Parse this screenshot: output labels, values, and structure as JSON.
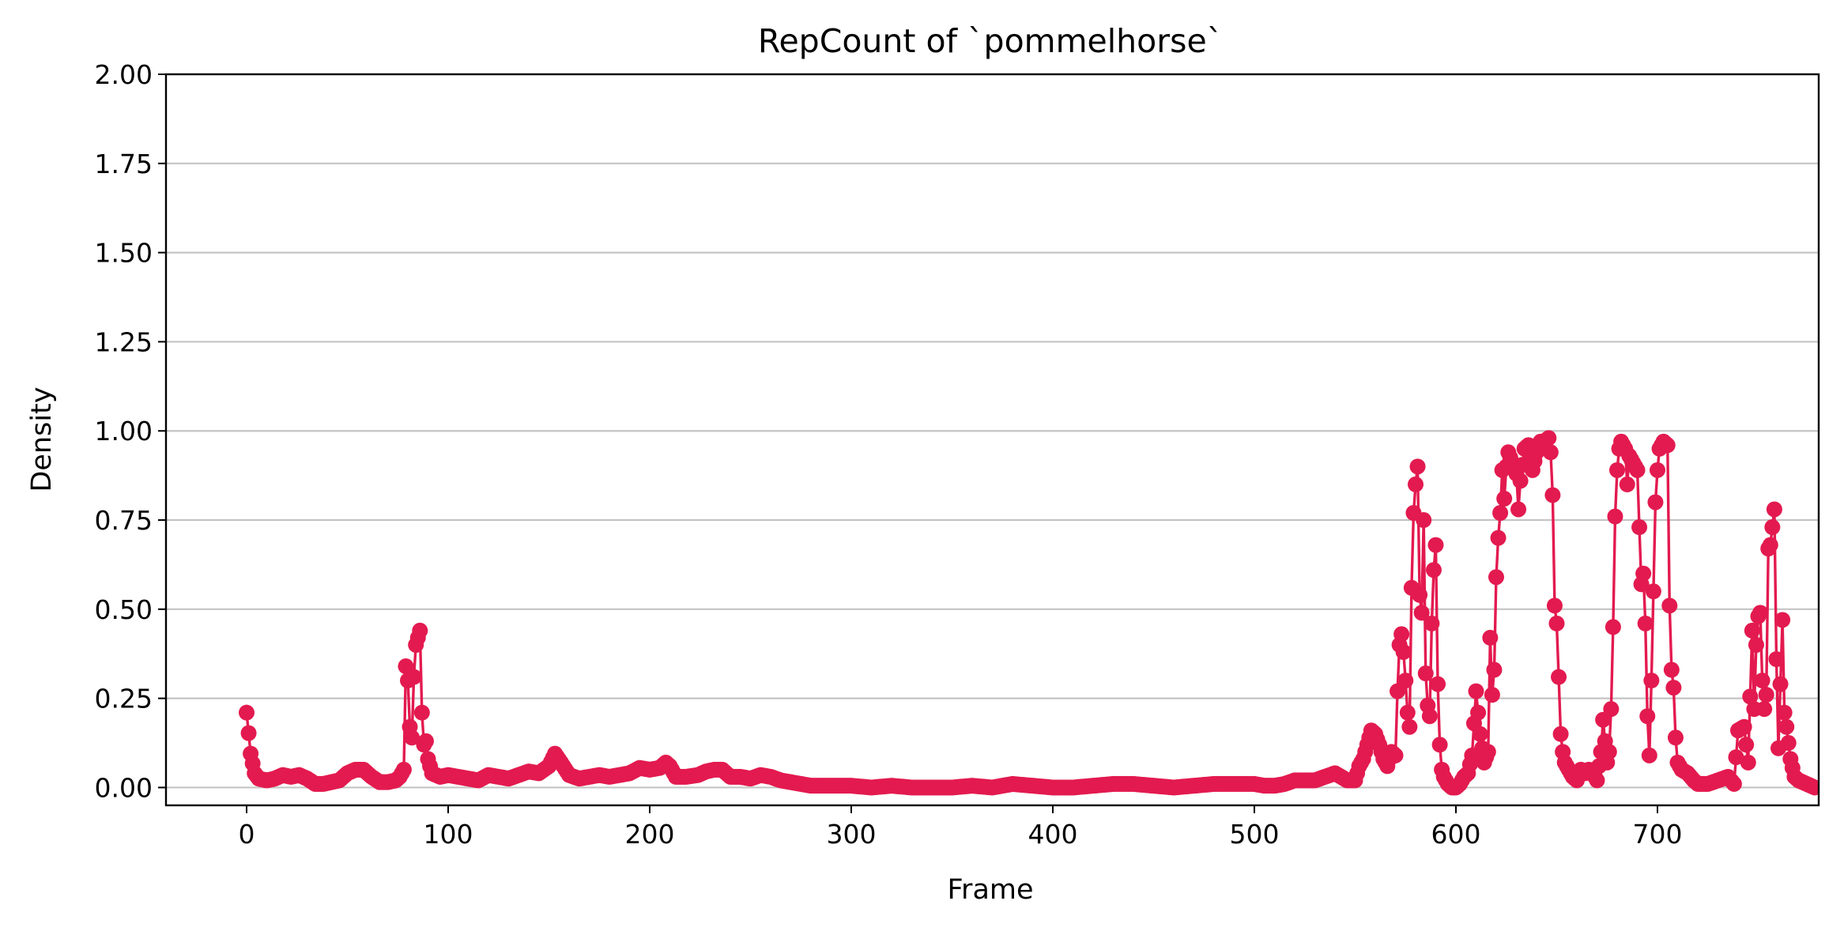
{
  "chart_data": {
    "type": "line",
    "title": "RepCount of `pommelhorse`",
    "xlabel": "Frame",
    "ylabel": "Density",
    "xlim": [
      -40,
      780
    ],
    "ylim": [
      -0.05,
      2.0
    ],
    "xticks": [
      0,
      100,
      200,
      300,
      400,
      500,
      600,
      700
    ],
    "xtick_labels": [
      "0",
      "100",
      "200",
      "300",
      "400",
      "500",
      "600",
      "700"
    ],
    "yticks": [
      0.0,
      0.25,
      0.5,
      0.75,
      1.0,
      1.25,
      1.5,
      1.75,
      2.0
    ],
    "ytick_labels": [
      "0.00",
      "0.25",
      "0.50",
      "0.75",
      "1.00",
      "1.25",
      "1.50",
      "1.75",
      "2.00"
    ],
    "grid": "y",
    "line_color": "#e31a4f",
    "marker": "circle",
    "series": [
      {
        "keypoints": [
          [
            0,
            0.21
          ],
          [
            2,
            0.095
          ],
          [
            4,
            0.04
          ],
          [
            6,
            0.025
          ],
          [
            10,
            0.02
          ],
          [
            14,
            0.025
          ],
          [
            18,
            0.035
          ],
          [
            22,
            0.03
          ],
          [
            26,
            0.035
          ],
          [
            30,
            0.025
          ],
          [
            34,
            0.01
          ],
          [
            38,
            0.01
          ],
          [
            42,
            0.015
          ],
          [
            46,
            0.02
          ],
          [
            50,
            0.04
          ],
          [
            54,
            0.05
          ],
          [
            58,
            0.05
          ],
          [
            62,
            0.03
          ],
          [
            66,
            0.015
          ],
          [
            70,
            0.015
          ],
          [
            74,
            0.02
          ],
          [
            76,
            0.03
          ],
          [
            78,
            0.05
          ],
          [
            79,
            0.34
          ],
          [
            80,
            0.3
          ],
          [
            81,
            0.17
          ],
          [
            82,
            0.14
          ],
          [
            83,
            0.31
          ],
          [
            84,
            0.4
          ],
          [
            85,
            0.42
          ],
          [
            86,
            0.44
          ],
          [
            87,
            0.21
          ],
          [
            88,
            0.12
          ],
          [
            89,
            0.13
          ],
          [
            90,
            0.08
          ],
          [
            92,
            0.04
          ],
          [
            96,
            0.03
          ],
          [
            100,
            0.035
          ],
          [
            105,
            0.03
          ],
          [
            110,
            0.025
          ],
          [
            115,
            0.02
          ],
          [
            120,
            0.035
          ],
          [
            125,
            0.03
          ],
          [
            130,
            0.025
          ],
          [
            135,
            0.035
          ],
          [
            140,
            0.045
          ],
          [
            145,
            0.04
          ],
          [
            150,
            0.06
          ],
          [
            153,
            0.095
          ],
          [
            156,
            0.07
          ],
          [
            160,
            0.035
          ],
          [
            165,
            0.025
          ],
          [
            170,
            0.03
          ],
          [
            175,
            0.035
          ],
          [
            180,
            0.03
          ],
          [
            185,
            0.035
          ],
          [
            190,
            0.04
          ],
          [
            195,
            0.055
          ],
          [
            200,
            0.05
          ],
          [
            205,
            0.055
          ],
          [
            208,
            0.07
          ],
          [
            210,
            0.06
          ],
          [
            213,
            0.03
          ],
          [
            218,
            0.03
          ],
          [
            224,
            0.035
          ],
          [
            228,
            0.045
          ],
          [
            232,
            0.05
          ],
          [
            236,
            0.05
          ],
          [
            240,
            0.03
          ],
          [
            245,
            0.03
          ],
          [
            250,
            0.025
          ],
          [
            255,
            0.035
          ],
          [
            260,
            0.03
          ],
          [
            265,
            0.02
          ],
          [
            270,
            0.015
          ],
          [
            275,
            0.01
          ],
          [
            280,
            0.005
          ],
          [
            290,
            0.005
          ],
          [
            300,
            0.005
          ],
          [
            310,
            0.0
          ],
          [
            320,
            0.005
          ],
          [
            330,
            0.0
          ],
          [
            340,
            0.0
          ],
          [
            350,
            0.0
          ],
          [
            360,
            0.005
          ],
          [
            370,
            0.0
          ],
          [
            380,
            0.01
          ],
          [
            390,
            0.005
          ],
          [
            400,
            0.0
          ],
          [
            410,
            0.0
          ],
          [
            420,
            0.005
          ],
          [
            430,
            0.01
          ],
          [
            440,
            0.01
          ],
          [
            450,
            0.005
          ],
          [
            460,
            0.0
          ],
          [
            470,
            0.005
          ],
          [
            480,
            0.01
          ],
          [
            490,
            0.01
          ],
          [
            500,
            0.01
          ],
          [
            505,
            0.005
          ],
          [
            510,
            0.005
          ],
          [
            515,
            0.01
          ],
          [
            520,
            0.02
          ],
          [
            525,
            0.02
          ],
          [
            530,
            0.02
          ],
          [
            535,
            0.03
          ],
          [
            540,
            0.04
          ],
          [
            543,
            0.03
          ],
          [
            546,
            0.02
          ],
          [
            550,
            0.02
          ],
          [
            552,
            0.06
          ],
          [
            554,
            0.08
          ],
          [
            556,
            0.12
          ],
          [
            558,
            0.16
          ],
          [
            560,
            0.15
          ],
          [
            562,
            0.12
          ],
          [
            564,
            0.08
          ],
          [
            566,
            0.06
          ],
          [
            568,
            0.1
          ],
          [
            570,
            0.09
          ],
          [
            571,
            0.27
          ],
          [
            572,
            0.4
          ],
          [
            573,
            0.43
          ],
          [
            574,
            0.38
          ],
          [
            575,
            0.3
          ],
          [
            576,
            0.21
          ],
          [
            577,
            0.17
          ],
          [
            578,
            0.56
          ],
          [
            579,
            0.77
          ],
          [
            580,
            0.85
          ],
          [
            581,
            0.9
          ],
          [
            582,
            0.54
          ],
          [
            583,
            0.49
          ],
          [
            584,
            0.75
          ],
          [
            585,
            0.32
          ],
          [
            586,
            0.23
          ],
          [
            587,
            0.2
          ],
          [
            588,
            0.46
          ],
          [
            589,
            0.61
          ],
          [
            590,
            0.68
          ],
          [
            591,
            0.29
          ],
          [
            592,
            0.12
          ],
          [
            593,
            0.05
          ],
          [
            594,
            0.03
          ],
          [
            596,
            0.01
          ],
          [
            598,
            0.0
          ],
          [
            600,
            0.0
          ],
          [
            602,
            0.01
          ],
          [
            604,
            0.03
          ],
          [
            606,
            0.04
          ],
          [
            608,
            0.09
          ],
          [
            609,
            0.18
          ],
          [
            610,
            0.27
          ],
          [
            612,
            0.15
          ],
          [
            614,
            0.07
          ],
          [
            616,
            0.1
          ],
          [
            617,
            0.42
          ],
          [
            618,
            0.26
          ],
          [
            619,
            0.33
          ],
          [
            620,
            0.59
          ],
          [
            621,
            0.7
          ],
          [
            622,
            0.77
          ],
          [
            623,
            0.89
          ],
          [
            624,
            0.81
          ],
          [
            625,
            0.9
          ],
          [
            626,
            0.94
          ],
          [
            628,
            0.91
          ],
          [
            630,
            0.88
          ],
          [
            631,
            0.78
          ],
          [
            632,
            0.86
          ],
          [
            634,
            0.95
          ],
          [
            636,
            0.96
          ],
          [
            638,
            0.89
          ],
          [
            640,
            0.94
          ],
          [
            642,
            0.97
          ],
          [
            644,
            0.97
          ],
          [
            646,
            0.98
          ],
          [
            647,
            0.94
          ],
          [
            648,
            0.82
          ],
          [
            649,
            0.51
          ],
          [
            650,
            0.46
          ],
          [
            651,
            0.31
          ],
          [
            652,
            0.15
          ],
          [
            653,
            0.1
          ],
          [
            654,
            0.07
          ],
          [
            656,
            0.05
          ],
          [
            658,
            0.03
          ],
          [
            660,
            0.02
          ],
          [
            662,
            0.05
          ],
          [
            664,
            0.04
          ],
          [
            666,
            0.05
          ],
          [
            668,
            0.04
          ],
          [
            670,
            0.02
          ],
          [
            672,
            0.1
          ],
          [
            673,
            0.19
          ],
          [
            675,
            0.07
          ],
          [
            676,
            0.1
          ],
          [
            677,
            0.22
          ],
          [
            678,
            0.45
          ],
          [
            679,
            0.76
          ],
          [
            680,
            0.89
          ],
          [
            681,
            0.95
          ],
          [
            682,
            0.97
          ],
          [
            684,
            0.95
          ],
          [
            685,
            0.85
          ],
          [
            686,
            0.93
          ],
          [
            688,
            0.91
          ],
          [
            690,
            0.89
          ],
          [
            692,
            0.57
          ],
          [
            693,
            0.6
          ],
          [
            694,
            0.46
          ],
          [
            695,
            0.2
          ],
          [
            696,
            0.09
          ],
          [
            697,
            0.3
          ],
          [
            698,
            0.55
          ],
          [
            699,
            0.8
          ],
          [
            700,
            0.89
          ],
          [
            701,
            0.95
          ],
          [
            703,
            0.97
          ],
          [
            705,
            0.96
          ],
          [
            706,
            0.51
          ],
          [
            707,
            0.33
          ],
          [
            708,
            0.28
          ],
          [
            709,
            0.14
          ],
          [
            710,
            0.07
          ],
          [
            712,
            0.05
          ],
          [
            715,
            0.04
          ],
          [
            718,
            0.02
          ],
          [
            720,
            0.01
          ],
          [
            725,
            0.01
          ],
          [
            730,
            0.02
          ],
          [
            735,
            0.03
          ],
          [
            738,
            0.01
          ],
          [
            740,
            0.16
          ],
          [
            743,
            0.17
          ],
          [
            745,
            0.07
          ],
          [
            747,
            0.44
          ],
          [
            748,
            0.22
          ],
          [
            749,
            0.4
          ],
          [
            750,
            0.48
          ],
          [
            751,
            0.49
          ],
          [
            752,
            0.3
          ],
          [
            753,
            0.22
          ],
          [
            754,
            0.26
          ],
          [
            755,
            0.67
          ],
          [
            756,
            0.68
          ],
          [
            757,
            0.73
          ],
          [
            758,
            0.78
          ],
          [
            759,
            0.36
          ],
          [
            760,
            0.11
          ],
          [
            762,
            0.47
          ],
          [
            763,
            0.21
          ],
          [
            764,
            0.17
          ],
          [
            766,
            0.08
          ],
          [
            768,
            0.03
          ],
          [
            770,
            0.02
          ],
          [
            774,
            0.01
          ],
          [
            778,
            0.0
          ]
        ]
      }
    ]
  }
}
